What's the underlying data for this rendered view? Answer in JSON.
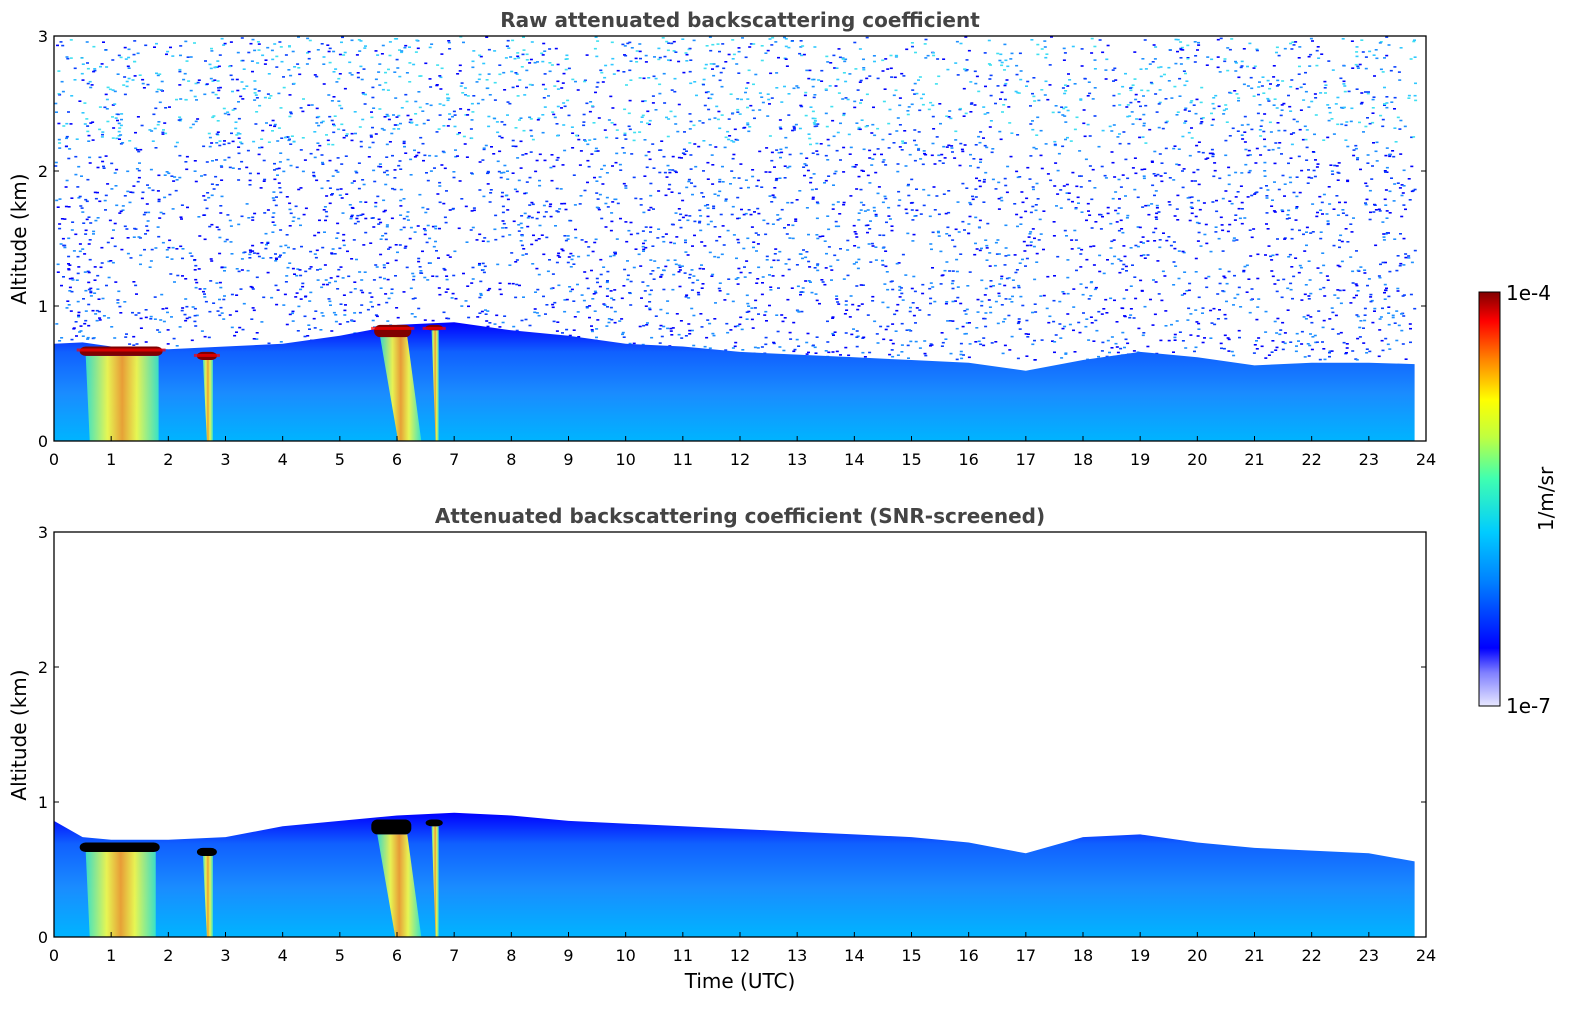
{
  "chart_data": [
    {
      "type": "heatmap",
      "title": "Raw attenuated backscattering coefficient",
      "xlabel": "",
      "ylabel": "Altitude (km)",
      "x_ticks": [
        "0",
        "1",
        "2",
        "3",
        "4",
        "5",
        "6",
        "7",
        "8",
        "9",
        "10",
        "11",
        "12",
        "13",
        "14",
        "15",
        "16",
        "17",
        "18",
        "19",
        "20",
        "21",
        "22",
        "23",
        "24"
      ],
      "y_ticks": [
        "0",
        "1",
        "2",
        "3"
      ],
      "xlim": [
        0,
        24
      ],
      "ylim": [
        0,
        3
      ],
      "data_end_hour": 23.8,
      "noise_above_boundary": true,
      "boundary_layer_top_km": [
        [
          0,
          0.72
        ],
        [
          0.5,
          0.73
        ],
        [
          1,
          0.7
        ],
        [
          2,
          0.68
        ],
        [
          3,
          0.7
        ],
        [
          4,
          0.72
        ],
        [
          5,
          0.78
        ],
        [
          6,
          0.86
        ],
        [
          7,
          0.88
        ],
        [
          8,
          0.82
        ],
        [
          9,
          0.78
        ],
        [
          10,
          0.72
        ],
        [
          11,
          0.7
        ],
        [
          12,
          0.66
        ],
        [
          13,
          0.64
        ],
        [
          14,
          0.62
        ],
        [
          15,
          0.6
        ],
        [
          16,
          0.58
        ],
        [
          17,
          0.52
        ],
        [
          18,
          0.6
        ],
        [
          19,
          0.66
        ],
        [
          20,
          0.62
        ],
        [
          21,
          0.56
        ],
        [
          22,
          0.58
        ],
        [
          23,
          0.58
        ],
        [
          23.8,
          0.57
        ]
      ],
      "cloud_layers": [
        {
          "start_hour": 0.45,
          "end_hour": 1.9,
          "base_km": 0.63,
          "top_km": 0.7
        },
        {
          "start_hour": 2.5,
          "end_hour": 2.85,
          "base_km": 0.6,
          "top_km": 0.66
        },
        {
          "start_hour": 5.6,
          "end_hour": 6.25,
          "base_km": 0.77,
          "top_km": 0.86
        },
        {
          "start_hour": 6.5,
          "end_hour": 6.8,
          "base_km": 0.82,
          "top_km": 0.86
        }
      ]
    },
    {
      "type": "heatmap",
      "title": "Attenuated backscattering coefficient (SNR-screened)",
      "xlabel": "Time (UTC)",
      "ylabel": "Altitude (km)",
      "x_ticks": [
        "0",
        "1",
        "2",
        "3",
        "4",
        "5",
        "6",
        "7",
        "8",
        "9",
        "10",
        "11",
        "12",
        "13",
        "14",
        "15",
        "16",
        "17",
        "18",
        "19",
        "20",
        "21",
        "22",
        "23",
        "24"
      ],
      "y_ticks": [
        "0",
        "1",
        "2",
        "3"
      ],
      "xlim": [
        0,
        24
      ],
      "ylim": [
        0,
        3
      ],
      "data_end_hour": 23.8,
      "noise_above_boundary": false,
      "boundary_layer_top_km": [
        [
          0,
          0.86
        ],
        [
          0.5,
          0.74
        ],
        [
          1,
          0.72
        ],
        [
          2,
          0.72
        ],
        [
          3,
          0.74
        ],
        [
          4,
          0.82
        ],
        [
          5,
          0.86
        ],
        [
          6,
          0.9
        ],
        [
          7,
          0.92
        ],
        [
          8,
          0.9
        ],
        [
          9,
          0.86
        ],
        [
          10,
          0.84
        ],
        [
          11,
          0.82
        ],
        [
          12,
          0.8
        ],
        [
          13,
          0.78
        ],
        [
          14,
          0.76
        ],
        [
          15,
          0.74
        ],
        [
          16,
          0.7
        ],
        [
          17,
          0.62
        ],
        [
          18,
          0.74
        ],
        [
          19,
          0.76
        ],
        [
          20,
          0.7
        ],
        [
          21,
          0.66
        ],
        [
          22,
          0.64
        ],
        [
          23,
          0.62
        ],
        [
          23.8,
          0.56
        ]
      ],
      "cloud_layers": [
        {
          "start_hour": 0.45,
          "end_hour": 1.85,
          "base_km": 0.63,
          "top_km": 0.7
        },
        {
          "start_hour": 2.5,
          "end_hour": 2.85,
          "base_km": 0.6,
          "top_km": 0.66
        },
        {
          "start_hour": 5.55,
          "end_hour": 6.25,
          "base_km": 0.76,
          "top_km": 0.87
        },
        {
          "start_hour": 6.5,
          "end_hour": 6.8,
          "base_km": 0.82,
          "top_km": 0.87
        }
      ]
    }
  ],
  "colorbar": {
    "label": "1/m/sr",
    "max_label": "1e-4",
    "min_label": "1e-7",
    "colormap": "jet"
  },
  "colors": {
    "low": "#0000ff",
    "mid_low": "#1e90ff",
    "mid": "#00cfff",
    "mid_high": "#ffff00",
    "high": "#ff0000",
    "max": "#800000",
    "saturated": "#000000"
  }
}
